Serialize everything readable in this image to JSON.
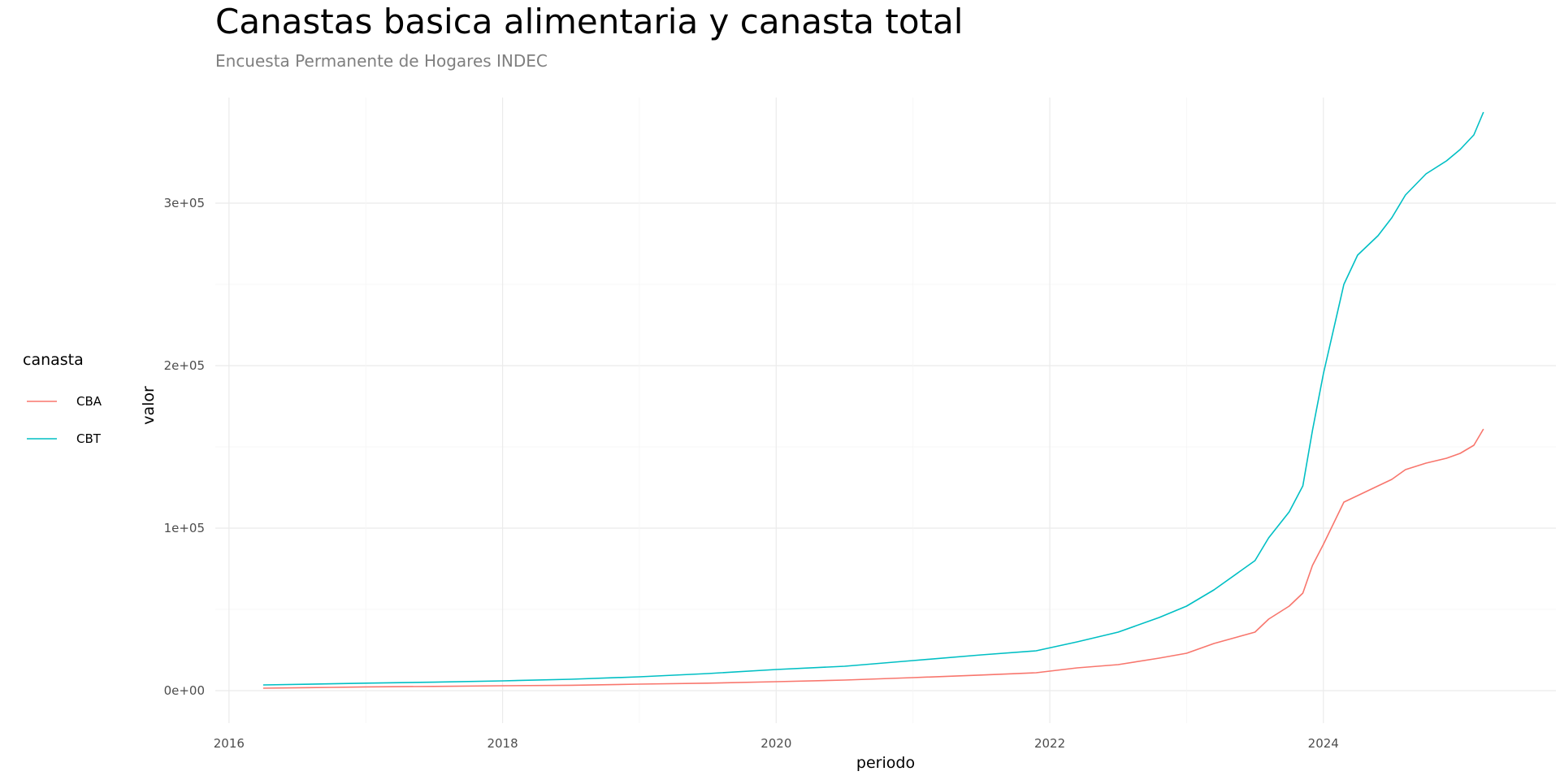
{
  "chart_data": {
    "type": "line",
    "title": "Canastas basica alimentaria y canasta total",
    "subtitle": "Encuesta Permanente de Hogares INDEC",
    "xlabel": "periodo",
    "ylabel": "valor",
    "xlim": [
      2015.9,
      2025.7
    ],
    "ylim": [
      -20000,
      365000
    ],
    "x_ticks": [
      2016,
      2018,
      2020,
      2022,
      2024
    ],
    "x_tick_labels": [
      "2016",
      "2018",
      "2020",
      "2022",
      "2024"
    ],
    "y_ticks": [
      0,
      100000,
      200000,
      300000
    ],
    "y_tick_labels": [
      "0e+00",
      "1e+05",
      "2e+05",
      "3e+05"
    ],
    "grid": true,
    "legend": {
      "title": "canasta",
      "position": "left"
    },
    "series": [
      {
        "name": "CBA",
        "color": "#F8766D",
        "x": [
          2016.25,
          2016.75,
          2017.0,
          2017.5,
          2018.0,
          2018.5,
          2019.0,
          2019.5,
          2020.0,
          2020.5,
          2021.0,
          2021.5,
          2021.9,
          2022.2,
          2022.5,
          2022.8,
          2023.0,
          2023.2,
          2023.5,
          2023.6,
          2023.75,
          2023.85,
          2023.92,
          2024.0,
          2024.15,
          2024.25,
          2024.4,
          2024.5,
          2024.6,
          2024.75,
          2024.9,
          2025.0,
          2025.1,
          2025.17
        ],
        "y": [
          1500,
          2000,
          2300,
          2600,
          3000,
          3300,
          4000,
          4600,
          5500,
          6500,
          8000,
          9600,
          11000,
          14000,
          16000,
          20000,
          23000,
          29000,
          36000,
          44000,
          52000,
          60000,
          77000,
          90000,
          116000,
          120000,
          126000,
          130000,
          136000,
          140000,
          143000,
          146000,
          151000,
          161000
        ]
      },
      {
        "name": "CBT",
        "color": "#00BFC4",
        "x": [
          2016.25,
          2016.75,
          2017.0,
          2017.5,
          2018.0,
          2018.5,
          2019.0,
          2019.5,
          2020.0,
          2020.5,
          2021.0,
          2021.5,
          2021.9,
          2022.2,
          2022.5,
          2022.8,
          2023.0,
          2023.2,
          2023.5,
          2023.6,
          2023.75,
          2023.85,
          2023.92,
          2024.0,
          2024.15,
          2024.25,
          2024.4,
          2024.5,
          2024.6,
          2024.75,
          2024.9,
          2025.0,
          2025.1,
          2025.17
        ],
        "y": [
          3500,
          4200,
          4600,
          5200,
          6000,
          7000,
          8500,
          10500,
          13000,
          15000,
          18500,
          22000,
          24500,
          30000,
          36000,
          45000,
          52000,
          62000,
          80000,
          94000,
          110000,
          126000,
          160000,
          195000,
          250000,
          268000,
          280000,
          291000,
          305000,
          318000,
          326000,
          333000,
          342000,
          356000
        ]
      }
    ]
  }
}
